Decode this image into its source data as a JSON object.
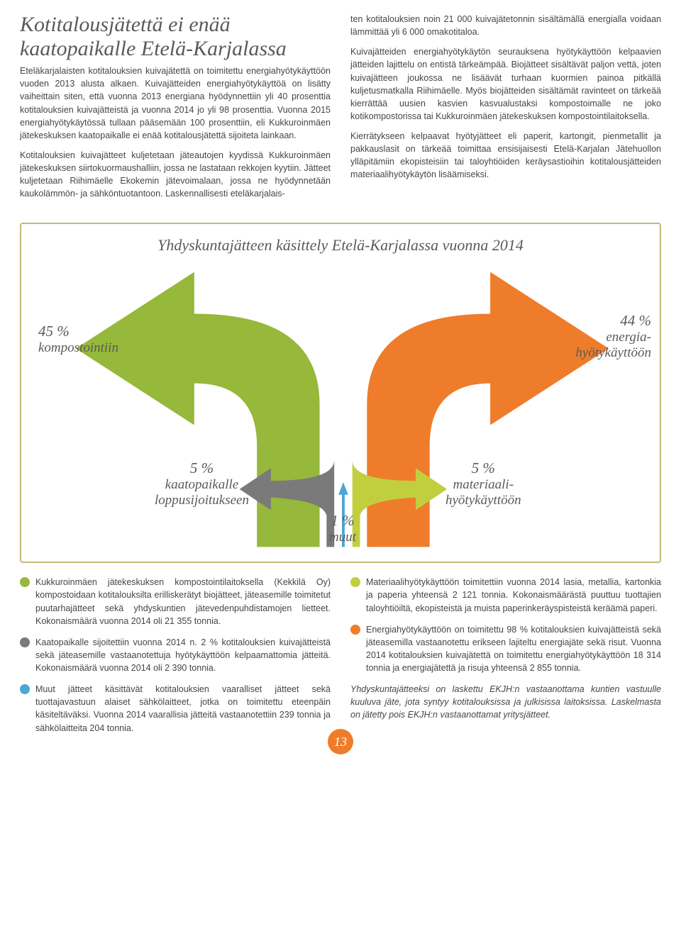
{
  "title": "Kotitalousjätettä ei enää kaatopaikalle Etelä-Karjalassa",
  "col1": {
    "p1": "Eteläkarjalaisten kotitalouksien kuivajätettä on toimitettu energiahyötykäyttöön vuoden 2013 alusta alkaen. Kuivajätteiden energiahyötykäyttöä on lisätty vaiheittain siten, että vuonna 2013 energiana hyödynnettiin yli 40 prosenttia kotitalouksien kuivajätteistä ja vuonna 2014 jo yli 98 prosenttia. Vuonna 2015 energiahyötykäytössä tullaan pääsemään 100 prosenttiin, eli Kukkuroinmäen jätekeskuksen kaatopaikalle ei enää kotitalousjätettä sijoiteta lainkaan.",
    "p2": "Kotitalouksien kuivajätteet kuljetetaan jäteautojen kyydissä Kukkuroinmäen jätekeskuksen siirtokuormaushalliin, jossa ne lastataan rekkojen kyytiin. Jätteet kuljetetaan Riihimäelle Ekokemin jätevoimalaan, jossa ne hyödynnetään kaukolämmön- ja sähköntuotantoon. Laskennallisesti eteläkarjalais-"
  },
  "col2": {
    "p1": "ten kotitalouksien noin 21 000 kuivajätetonnin sisältämällä energialla voidaan lämmittää yli 6 000 omakotitaloa.",
    "p2": "Kuivajätteiden energiahyötykäytön seurauksena hyötykäyttöön kelpaavien jätteiden lajittelu on entistä tärkeämpää. Biojätteet sisältävät paljon vettä, joten kuivajätteen joukossa ne lisäävät turhaan kuormien painoa pitkällä kuljetusmatkalla Riihimäelle. Myös biojätteiden sisältämät ravinteet on tärkeää kierrättää uusien kasvien kasvualustaksi kompostoimalle ne joko kotikompostorissa tai Kukkuroinmäen jätekeskuksen kompostointilaitoksella.",
    "p3": "Kierrätykseen kelpaavat hyötyjätteet eli paperit, kartongit, pienmetallit ja pakkauslasit on tärkeää toimittaa ensisijaisesti Etelä-Karjalan Jätehuollon ylläpitämiin ekopisteisiin tai taloyhtiöiden keräysastioihin kotitalousjätteiden materiaalihyötykäytön lisäämiseksi."
  },
  "infobox": {
    "title": "Yhdyskuntajätteen käsittely Etelä-Karjalassa vuonna 2014",
    "flows": {
      "kompostointi": {
        "pct": "45 %",
        "label": "kompostointiin",
        "color": "#96b83b"
      },
      "energia": {
        "pct": "44 %",
        "label": "energia-\nhyötykäyttöön",
        "color": "#ef7c2a"
      },
      "kaatopaikka": {
        "pct": "5 %",
        "label": "kaatopaikalle\nloppusijoitukseen",
        "color": "#7a7a7a"
      },
      "muut": {
        "pct": "1 %",
        "label": "muut",
        "color": "#4aa7d6"
      },
      "materiaali": {
        "pct": "5 %",
        "label": "materiaali-\nhyötykäyttöön",
        "color": "#c1cf3f"
      }
    }
  },
  "legend": {
    "left": [
      {
        "color": "#96b83b",
        "text": "Kukkuroinmäen jätekeskuksen kompostointilaitoksella (Kekkilä Oy) kompostoidaan kotitalouksilta erilliskerätyt biojätteet, jäteasemille toimitetut puutarhajätteet sekä yhdyskuntien jätevedenpuhdistamojen lietteet. Kokonaismäärä vuonna 2014 oli 21 355 tonnia."
      },
      {
        "color": "#7a7a7a",
        "text": "Kaatopaikalle sijoitettiin vuonna 2014 n. 2 % kotitalouksien kuivajätteistä sekä jäteasemille vastaanotettuja hyötykäyttöön kelpaamattomia jätteitä. Kokonaismäärä vuonna 2014 oli 2 390 tonnia."
      },
      {
        "color": "#4aa7d6",
        "text": "Muut jätteet käsittävät kotitalouksien vaaralliset jätteet sekä tuottajavastuun alaiset sähkölaitteet, jotka on toimitettu eteenpäin käsiteltäväksi. Vuonna 2014 vaarallisia jätteitä vastaanotettiin 239 tonnia ja sähkölaitteita 204 tonnia."
      }
    ],
    "right": [
      {
        "color": "#c1cf3f",
        "text": "Materiaalihyötykäyttöön toimitettiin vuonna 2014 lasia, metallia, kartonkia ja paperia yhteensä 2 121 tonnia. Kokonaismäärästä puuttuu tuottajien taloyhtiöiltä, ekopisteistä ja muista paperinkeräyspisteistä keräämä paperi."
      },
      {
        "color": "#ef7c2a",
        "text": "Energiahyötykäyttöön on toimitettu 98 % kotitalouksien kuivajätteistä sekä jäteasemilla vastaanotettu erikseen lajiteltu energiajäte sekä risut. Vuonna 2014 kotitalouksien kuivajätettä on toimitettu energiahyötykäyttöön 18 314 tonnia ja energiajätettä ja risuja yhteensä 2 855 tonnia."
      }
    ],
    "footnote": "Yhdyskuntajätteeksi on laskettu EKJH:n vastaanottama kuntien vastuulle kuuluva jäte, jota syntyy kotitalouksissa ja julkisissa laitoksissa. Laskelmasta on jätetty pois EKJH:n vastaanottamat yritysjätteet."
  },
  "page_number": "13"
}
